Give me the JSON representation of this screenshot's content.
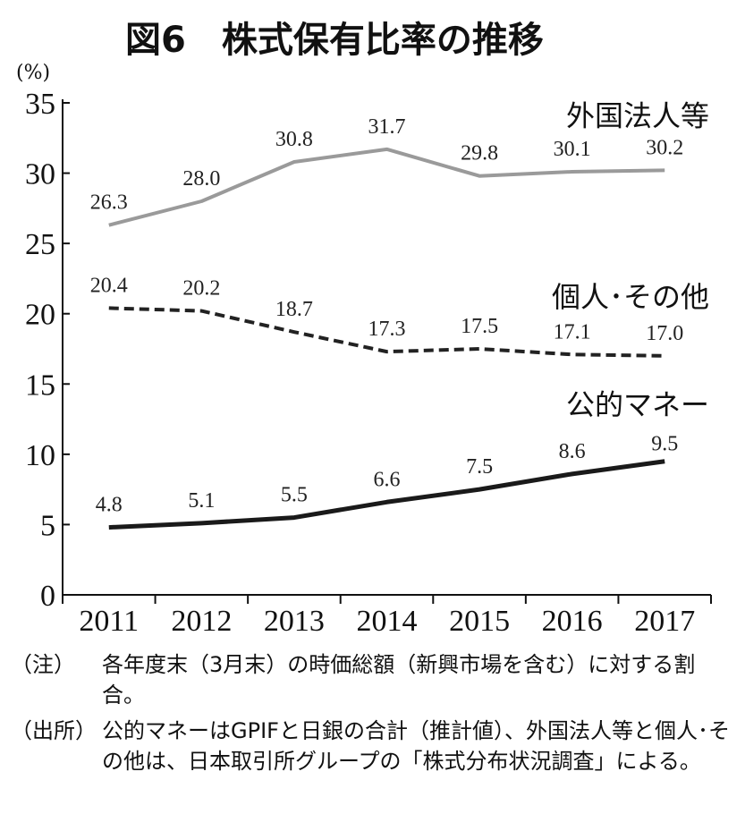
{
  "chart_data": {
    "type": "line",
    "title": "図6　株式保有比率の推移",
    "ylabel": "(%)",
    "xlabel": "",
    "ylim": [
      0,
      35
    ],
    "yticks": [
      0,
      5,
      10,
      15,
      20,
      25,
      30,
      35
    ],
    "categories": [
      "2011",
      "2012",
      "2013",
      "2014",
      "2015",
      "2016",
      "2017"
    ],
    "grid": false,
    "series": [
      {
        "name": "外国法人等",
        "values": [
          26.3,
          28.0,
          30.8,
          31.7,
          29.8,
          30.1,
          30.2
        ],
        "labels": [
          "26.3",
          "28.0",
          "30.8",
          "31.7",
          "29.8",
          "30.1",
          "30.2"
        ],
        "color": "#9a9a9a",
        "style": "solid"
      },
      {
        "name": "個人･その他",
        "values": [
          20.4,
          20.2,
          18.7,
          17.3,
          17.5,
          17.1,
          17.0
        ],
        "labels": [
          "20.4",
          "20.2",
          "18.7",
          "17.3",
          "17.5",
          "17.1",
          "17.0"
        ],
        "color": "#222222",
        "style": "dashed"
      },
      {
        "name": "公的マネー",
        "values": [
          4.8,
          5.1,
          5.5,
          6.6,
          7.5,
          8.6,
          9.5
        ],
        "labels": [
          "4.8",
          "5.1",
          "5.5",
          "6.6",
          "7.5",
          "8.6",
          "9.5"
        ],
        "color": "#1a1a1a",
        "style": "solid-thick"
      }
    ]
  },
  "notes": [
    {
      "head": "（注）",
      "text": "各年度末（3月末）の時価総額（新興市場を含む）に対する割合。"
    },
    {
      "head": "（出所）",
      "text": "公的マネーはGPIFと日銀の合計（推計値）、外国法人等と個人･その他は、日本取引所グループの「株式分布状況調査」による。"
    }
  ]
}
